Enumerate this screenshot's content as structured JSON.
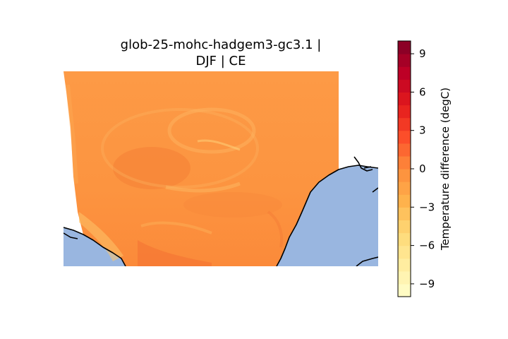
{
  "figure": {
    "title_line1": "glob-25-mohc-hadgem3-gc3.1 |",
    "title_line2": "DJF | CE"
  },
  "map": {
    "land_base_color": "#fc9a45",
    "ocean_color": "#99b6e0",
    "coastline_color": "#000000"
  },
  "colorbar": {
    "label": "Temperature difference (degC)",
    "range": [
      -10,
      10
    ],
    "ticks": [
      {
        "value": 9,
        "label": "9"
      },
      {
        "value": 6,
        "label": "6"
      },
      {
        "value": 3,
        "label": "3"
      },
      {
        "value": 0,
        "label": "0"
      },
      {
        "value": -3,
        "label": "−3"
      },
      {
        "value": -6,
        "label": "−6"
      },
      {
        "value": -9,
        "label": "−9"
      }
    ],
    "colormap": "YlOrRd",
    "colors": [
      "#ffffcc",
      "#ffeda0",
      "#fed976",
      "#feb24c",
      "#fd8d3c",
      "#fc4e2a",
      "#e31a1c",
      "#bd0026",
      "#800026"
    ],
    "levels": 20
  }
}
